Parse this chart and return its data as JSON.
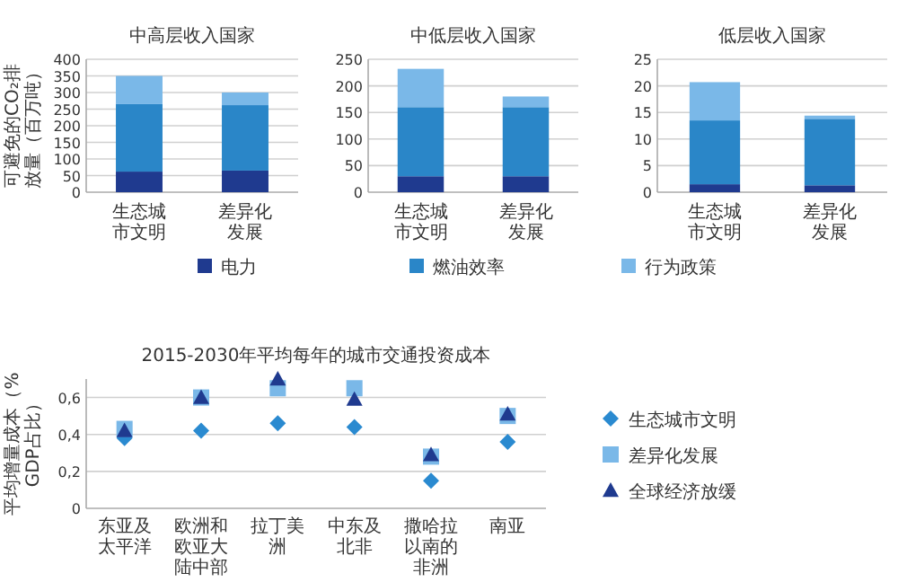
{
  "chart_data": [
    {
      "type": "bar",
      "title": "中高层收入国家",
      "ylabel": "可避免的CO₂排放量（百万吨）",
      "categories": [
        "生态城市文明",
        "差异化发展"
      ],
      "stacked": true,
      "grid": "y",
      "legend": "bottom",
      "ylim": [
        0,
        400
      ],
      "yticks": [
        0,
        50,
        100,
        150,
        200,
        250,
        300,
        350,
        400
      ],
      "series": [
        {
          "name": "电力",
          "color": "#1f3a8f",
          "values": [
            62,
            65
          ]
        },
        {
          "name": "燃油效率",
          "color": "#2a86c8",
          "values": [
            203,
            197
          ]
        },
        {
          "name": "行为政策",
          "color": "#7ab8e8",
          "values": [
            85,
            38
          ]
        }
      ]
    },
    {
      "type": "bar",
      "title": "中低层收入国家",
      "categories": [
        "生态城市文明",
        "差异化发展"
      ],
      "stacked": true,
      "grid": "y",
      "ylim": [
        0,
        250
      ],
      "yticks": [
        0,
        50,
        100,
        150,
        200,
        250
      ],
      "series": [
        {
          "color": "#1f3a8f",
          "values": [
            30,
            30
          ]
        },
        {
          "color": "#2a86c8",
          "values": [
            130,
            130
          ]
        },
        {
          "color": "#7ab8e8",
          "values": [
            72,
            20
          ]
        }
      ]
    },
    {
      "type": "bar",
      "title": "低层收入国家",
      "categories": [
        "生态城市文明",
        "差异化发展"
      ],
      "stacked": true,
      "grid": "y",
      "ylim": [
        0,
        25
      ],
      "yticks": [
        0,
        5,
        10,
        15,
        20,
        25
      ],
      "series": [
        {
          "color": "#1f3a8f",
          "values": [
            1.5,
            1.3
          ]
        },
        {
          "color": "#2a86c8",
          "values": [
            12,
            12.5
          ]
        },
        {
          "color": "#7ab8e8",
          "values": [
            7.2,
            0.6
          ]
        }
      ]
    },
    {
      "type": "scatter",
      "title": "2015-2030年平均每年的城市交通投资成本",
      "ylabel": "平均增量成本（% GDP占比）",
      "categories": [
        "东亚及太平洋",
        "欧洲和欧亚大陆中部",
        "拉丁美洲",
        "中东及北非",
        "撒哈拉以南的非洲",
        "南亚"
      ],
      "grid": "y",
      "legend": "right",
      "ylim": [
        0,
        0.7
      ],
      "yticks": [
        0,
        {
          "value": 0.2,
          "label": "0,2"
        },
        {
          "value": 0.4,
          "label": "0,4"
        },
        {
          "value": 0.6,
          "label": "0,6"
        }
      ],
      "series": [
        {
          "name": "生态城市文明",
          "color": "#2a8ad0",
          "marker": "diamond",
          "values": [
            0.38,
            0.42,
            0.46,
            0.44,
            0.15,
            0.36
          ]
        },
        {
          "name": "差异化发展",
          "color": "#7ab8e8",
          "marker": "square",
          "values": [
            0.43,
            0.6,
            0.65,
            0.65,
            0.28,
            0.5
          ]
        },
        {
          "name": "全球经济放缓",
          "color": "#1f3a8f",
          "marker": "triangle",
          "values": [
            0.42,
            0.6,
            0.7,
            0.59,
            0.29,
            0.51
          ]
        }
      ]
    }
  ]
}
